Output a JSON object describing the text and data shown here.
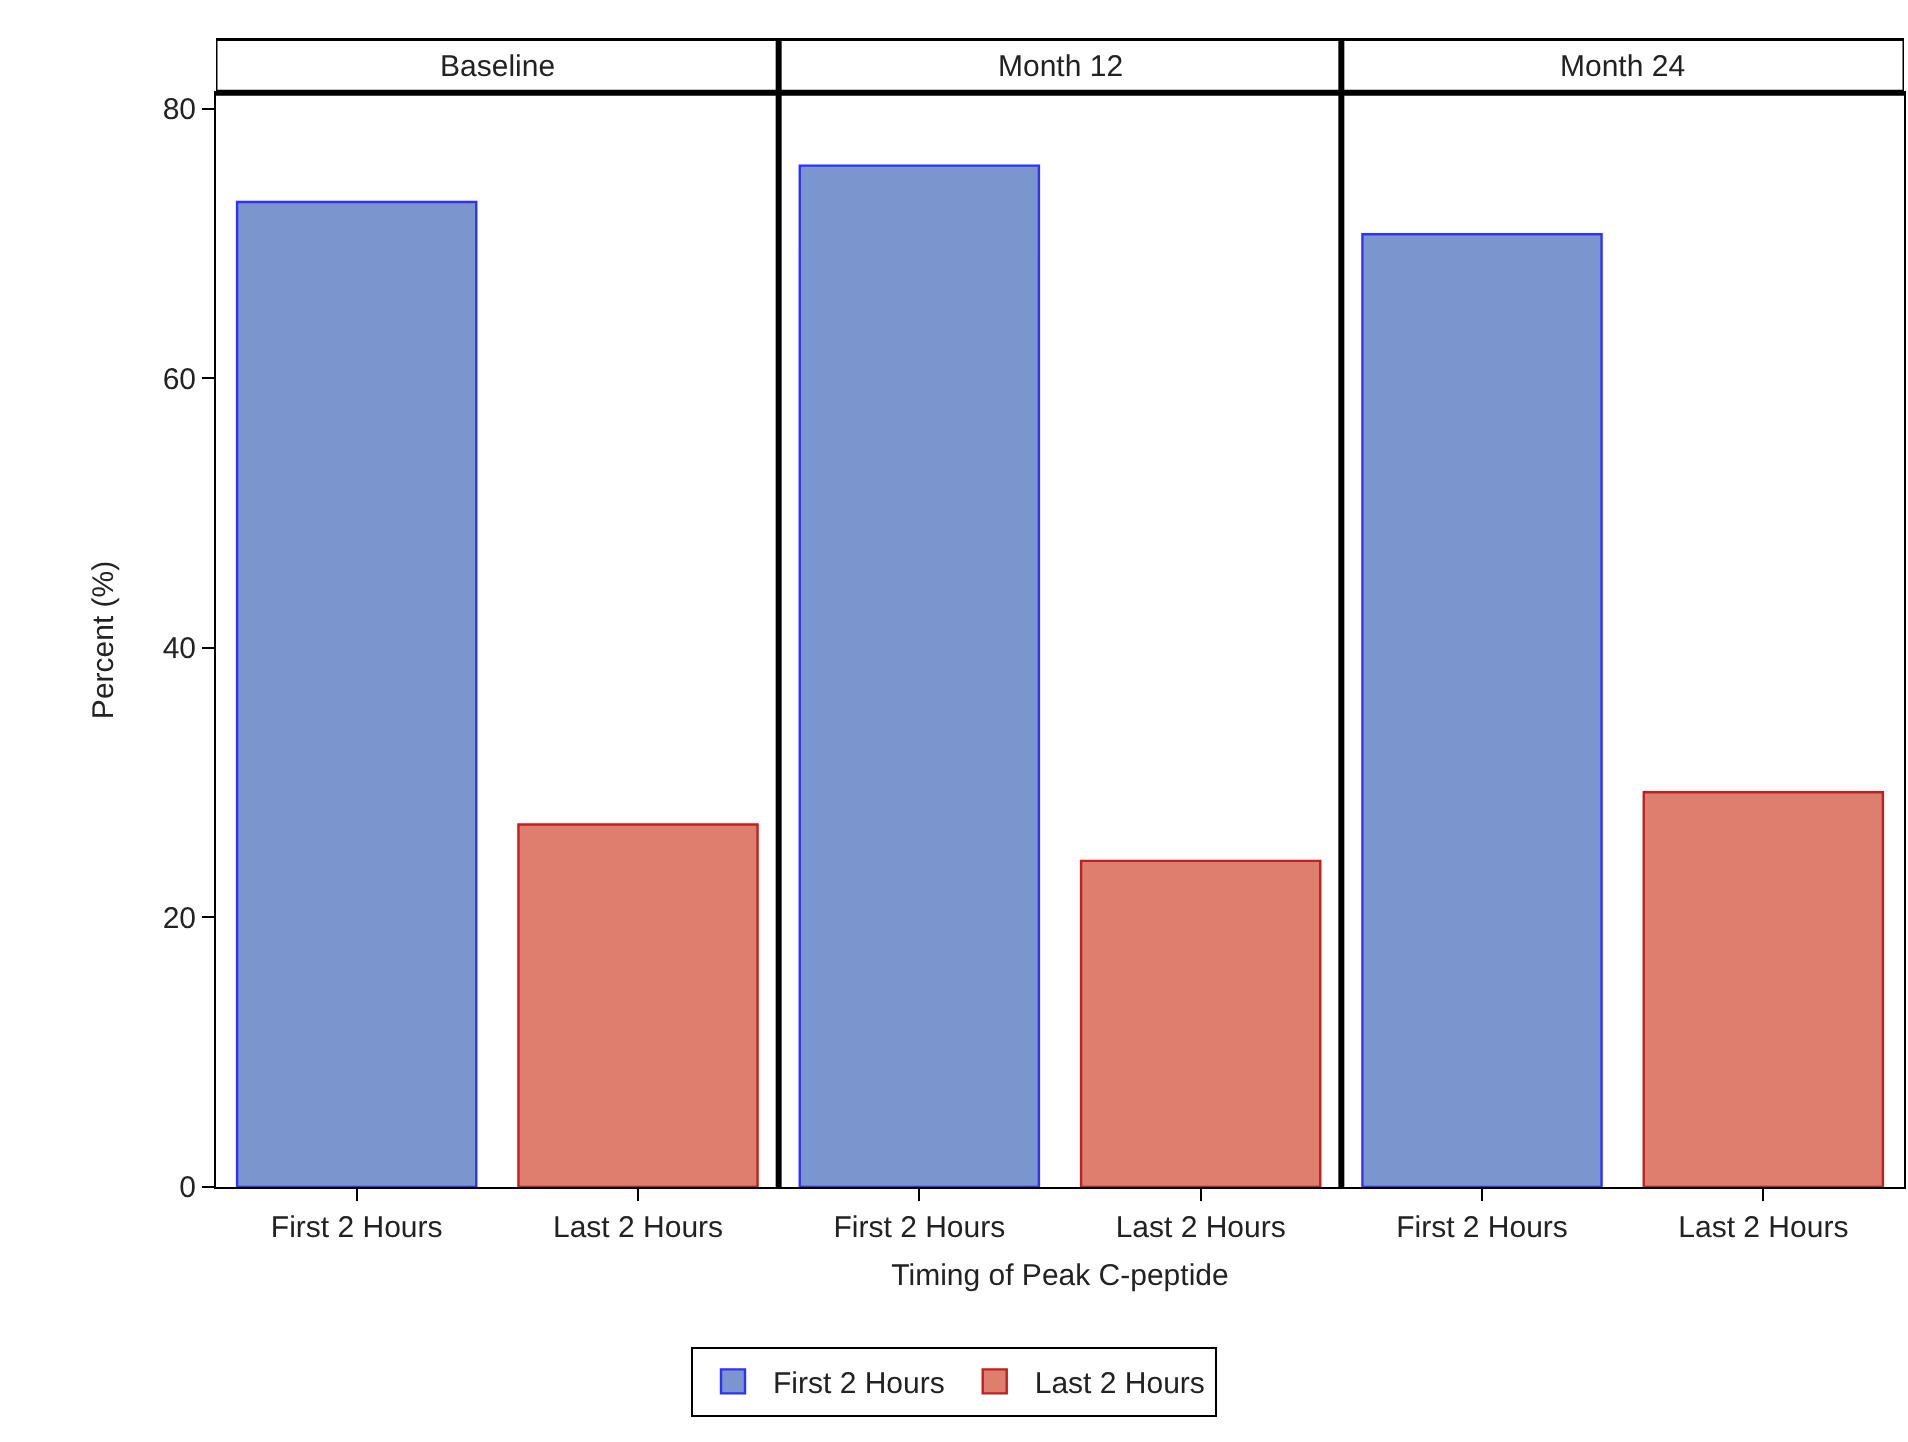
{
  "chart_data": {
    "type": "bar",
    "ylabel": "Percent (%)",
    "xlabel": "Timing of Peak C-peptide",
    "categories": [
      "First 2 Hours",
      "Last 2 Hours",
      "First 2 Hours",
      "Last 2 Hours",
      "First 2 Hours",
      "Last 2 Hours"
    ],
    "series": [
      {
        "name": "First 2 Hours",
        "color": "#7b96cf",
        "values": [
          73.1,
          null,
          75.8,
          null,
          70.7,
          null
        ]
      },
      {
        "name": "Last 2 Hours",
        "color": "#de7e6e",
        "values": [
          null,
          26.9,
          null,
          24.2,
          null,
          29.3
        ]
      }
    ],
    "annotations": [
      "Baseline",
      "Month 12",
      "Month 24"
    ],
    "ylim": [
      0,
      81.2
    ],
    "yticks": [
      0,
      20,
      40,
      60,
      80
    ],
    "legend": "bottom"
  }
}
